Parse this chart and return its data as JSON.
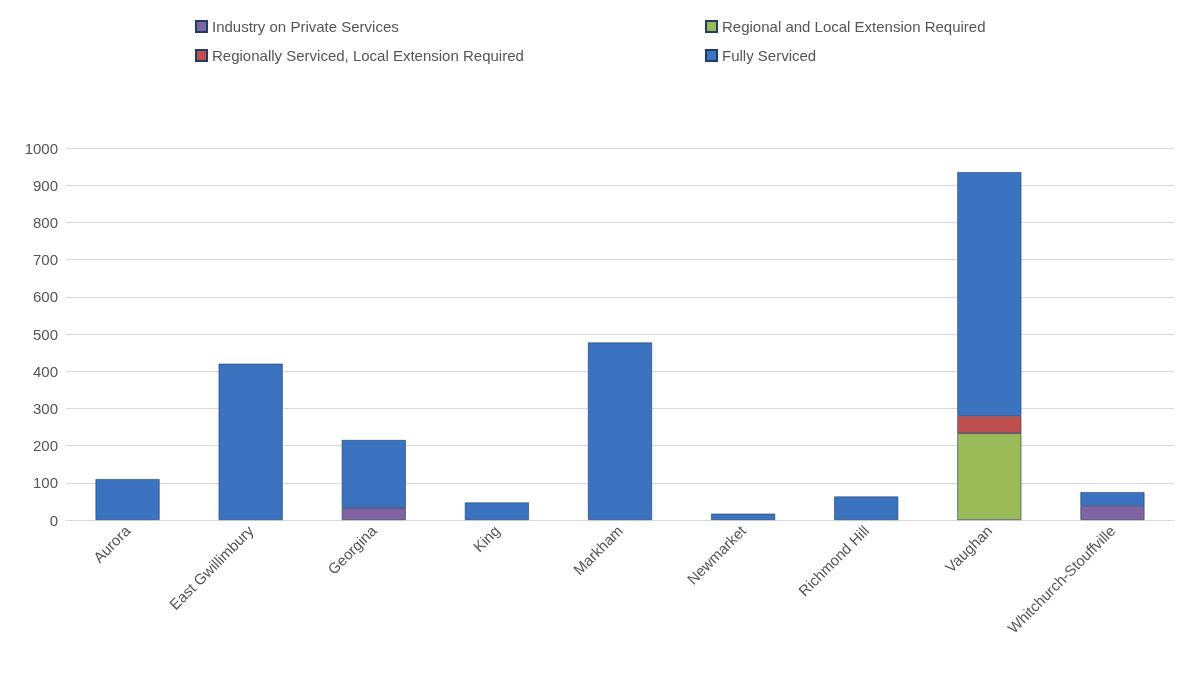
{
  "chart_data": {
    "type": "bar",
    "stacked": true,
    "legend": "top",
    "grid": "y",
    "categories": [
      "Aurora",
      "East Gwillimbury",
      "Georgina",
      "King",
      "Markham",
      "Newmarket",
      "Richmond Hill",
      "Vaughan",
      "Whitchurch-Stouffville"
    ],
    "ylim": [
      0,
      1000
    ],
    "yticks": [
      0,
      100,
      200,
      300,
      400,
      500,
      600,
      700,
      800,
      900,
      1000
    ],
    "series": [
      {
        "name": "Industry on Private Services",
        "color": "#8064a2",
        "values": [
          null,
          null,
          33,
          null,
          null,
          null,
          null,
          null,
          38
        ]
      },
      {
        "name": "Regional and Local Extension Required",
        "color": "#9bbb59",
        "values": [
          null,
          null,
          null,
          null,
          null,
          null,
          null,
          233,
          null
        ]
      },
      {
        "name": "Regionally Serviced, Local Extension Required",
        "color": "#c0504d",
        "values": [
          null,
          null,
          null,
          null,
          null,
          null,
          null,
          47,
          null
        ]
      },
      {
        "name": "Fully Serviced",
        "color": "#3b73c0",
        "values": [
          110,
          420,
          182,
          47,
          477,
          17,
          63,
          655,
          37
        ]
      }
    ]
  }
}
